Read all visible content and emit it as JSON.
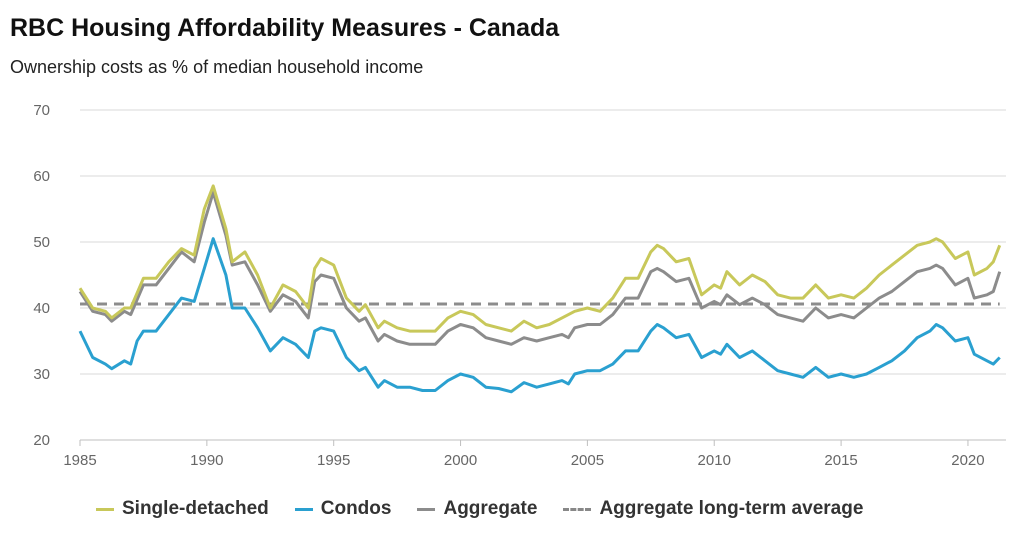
{
  "chart_data": {
    "type": "line",
    "title": "RBC Housing Affordability Measures - Canada",
    "subtitle": "Ownership costs as % of median household income",
    "xlabel": "",
    "ylabel": "",
    "xlim": [
      1985,
      2021.5
    ],
    "ylim": [
      20,
      70
    ],
    "x_ticks": [
      "1985",
      "1990",
      "1995",
      "2000",
      "2005",
      "2010",
      "2015",
      "2020"
    ],
    "y_ticks": [
      "20",
      "30",
      "40",
      "50",
      "60",
      "70"
    ],
    "grid": "horizontal",
    "legend_position": "bottom",
    "series": [
      {
        "name": "Single-detached",
        "color": "#c8c85a",
        "points": [
          [
            1985,
            43
          ],
          [
            1985.5,
            40
          ],
          [
            1986,
            39.5
          ],
          [
            1986.25,
            38.5
          ],
          [
            1986.75,
            40
          ],
          [
            1987,
            40
          ],
          [
            1987.5,
            44.5
          ],
          [
            1988,
            44.5
          ],
          [
            1988.5,
            47
          ],
          [
            1989,
            49
          ],
          [
            1989.5,
            48
          ],
          [
            1989.9,
            55
          ],
          [
            1990.25,
            58.5
          ],
          [
            1990.75,
            52
          ],
          [
            1991,
            47
          ],
          [
            1991.5,
            48.5
          ],
          [
            1992,
            45
          ],
          [
            1992.5,
            40
          ],
          [
            1993,
            43.5
          ],
          [
            1993.5,
            42.5
          ],
          [
            1994,
            40
          ],
          [
            1994.25,
            46
          ],
          [
            1994.5,
            47.5
          ],
          [
            1995,
            46.5
          ],
          [
            1995.5,
            41.5
          ],
          [
            1996,
            39.5
          ],
          [
            1996.25,
            40.5
          ],
          [
            1996.75,
            37
          ],
          [
            1997,
            38
          ],
          [
            1997.5,
            37
          ],
          [
            1998,
            36.5
          ],
          [
            1998.5,
            36.5
          ],
          [
            1999,
            36.5
          ],
          [
            1999.5,
            38.5
          ],
          [
            2000,
            39.5
          ],
          [
            2000.5,
            39
          ],
          [
            2001,
            37.5
          ],
          [
            2001.5,
            37
          ],
          [
            2002,
            36.5
          ],
          [
            2002.5,
            38
          ],
          [
            2003,
            37
          ],
          [
            2003.5,
            37.5
          ],
          [
            2004,
            38.5
          ],
          [
            2004.5,
            39.5
          ],
          [
            2005,
            40
          ],
          [
            2005.5,
            39.5
          ],
          [
            2006,
            41.5
          ],
          [
            2006.5,
            44.5
          ],
          [
            2007,
            44.5
          ],
          [
            2007.5,
            48.5
          ],
          [
            2007.75,
            49.5
          ],
          [
            2008,
            49
          ],
          [
            2008.5,
            47
          ],
          [
            2009,
            47.5
          ],
          [
            2009.5,
            42
          ],
          [
            2010,
            43.5
          ],
          [
            2010.25,
            43
          ],
          [
            2010.5,
            45.5
          ],
          [
            2011,
            43.5
          ],
          [
            2011.5,
            45
          ],
          [
            2012,
            44
          ],
          [
            2012.5,
            42
          ],
          [
            2013,
            41.5
          ],
          [
            2013.5,
            41.5
          ],
          [
            2014,
            43.5
          ],
          [
            2014.5,
            41.5
          ],
          [
            2015,
            42
          ],
          [
            2015.5,
            41.5
          ],
          [
            2016,
            43
          ],
          [
            2016.5,
            45
          ],
          [
            2017,
            46.5
          ],
          [
            2017.5,
            48
          ],
          [
            2018,
            49.5
          ],
          [
            2018.5,
            50
          ],
          [
            2018.75,
            50.5
          ],
          [
            2019,
            50
          ],
          [
            2019.5,
            47.5
          ],
          [
            2020,
            48.5
          ],
          [
            2020.25,
            45
          ],
          [
            2020.75,
            46
          ],
          [
            2021,
            47
          ],
          [
            2021.25,
            49.5
          ]
        ]
      },
      {
        "name": "Condos",
        "color": "#2aa0d0",
        "points": [
          [
            1985,
            36.5
          ],
          [
            1985.5,
            32.5
          ],
          [
            1986,
            31.5
          ],
          [
            1986.25,
            30.8
          ],
          [
            1986.75,
            32
          ],
          [
            1987,
            31.5
          ],
          [
            1987.25,
            35
          ],
          [
            1987.5,
            36.5
          ],
          [
            1988,
            36.5
          ],
          [
            1988.5,
            39
          ],
          [
            1989,
            41.5
          ],
          [
            1989.5,
            41
          ],
          [
            1989.9,
            46
          ],
          [
            1990.25,
            50.5
          ],
          [
            1990.75,
            45
          ],
          [
            1991,
            40
          ],
          [
            1991.5,
            40
          ],
          [
            1992,
            37
          ],
          [
            1992.5,
            33.5
          ],
          [
            1993,
            35.5
          ],
          [
            1993.5,
            34.5
          ],
          [
            1994,
            32.5
          ],
          [
            1994.25,
            36.5
          ],
          [
            1994.5,
            37
          ],
          [
            1995,
            36.5
          ],
          [
            1995.5,
            32.5
          ],
          [
            1996,
            30.5
          ],
          [
            1996.25,
            31
          ],
          [
            1996.75,
            28
          ],
          [
            1997,
            29
          ],
          [
            1997.5,
            28
          ],
          [
            1998,
            28
          ],
          [
            1998.5,
            27.5
          ],
          [
            1999,
            27.5
          ],
          [
            1999.5,
            29
          ],
          [
            2000,
            30
          ],
          [
            2000.5,
            29.5
          ],
          [
            2001,
            28
          ],
          [
            2001.5,
            27.8
          ],
          [
            2002,
            27.3
          ],
          [
            2002.5,
            28.7
          ],
          [
            2003,
            28
          ],
          [
            2003.5,
            28.5
          ],
          [
            2004,
            29
          ],
          [
            2004.25,
            28.5
          ],
          [
            2004.5,
            30
          ],
          [
            2005,
            30.5
          ],
          [
            2005.5,
            30.5
          ],
          [
            2006,
            31.5
          ],
          [
            2006.5,
            33.5
          ],
          [
            2007,
            33.5
          ],
          [
            2007.5,
            36.5
          ],
          [
            2007.75,
            37.5
          ],
          [
            2008,
            37
          ],
          [
            2008.5,
            35.5
          ],
          [
            2009,
            36
          ],
          [
            2009.5,
            32.5
          ],
          [
            2010,
            33.5
          ],
          [
            2010.25,
            33
          ],
          [
            2010.5,
            34.5
          ],
          [
            2011,
            32.5
          ],
          [
            2011.5,
            33.5
          ],
          [
            2012,
            32
          ],
          [
            2012.5,
            30.5
          ],
          [
            2013,
            30
          ],
          [
            2013.5,
            29.5
          ],
          [
            2014,
            31
          ],
          [
            2014.5,
            29.5
          ],
          [
            2015,
            30
          ],
          [
            2015.5,
            29.5
          ],
          [
            2016,
            30
          ],
          [
            2016.5,
            31
          ],
          [
            2017,
            32
          ],
          [
            2017.5,
            33.5
          ],
          [
            2018,
            35.5
          ],
          [
            2018.5,
            36.5
          ],
          [
            2018.75,
            37.5
          ],
          [
            2019,
            37
          ],
          [
            2019.5,
            35
          ],
          [
            2020,
            35.5
          ],
          [
            2020.25,
            33
          ],
          [
            2020.75,
            32
          ],
          [
            2021,
            31.5
          ],
          [
            2021.25,
            32.5
          ]
        ]
      },
      {
        "name": "Aggregate",
        "color": "#8c8c8c",
        "points": [
          [
            1985,
            42.5
          ],
          [
            1985.5,
            39.5
          ],
          [
            1986,
            39
          ],
          [
            1986.25,
            38
          ],
          [
            1986.75,
            39.5
          ],
          [
            1987,
            39
          ],
          [
            1987.5,
            43.5
          ],
          [
            1988,
            43.5
          ],
          [
            1988.5,
            46
          ],
          [
            1989,
            48.5
          ],
          [
            1989.5,
            47
          ],
          [
            1989.9,
            53
          ],
          [
            1990.25,
            57.5
          ],
          [
            1990.75,
            51
          ],
          [
            1991,
            46.5
          ],
          [
            1991.5,
            47
          ],
          [
            1992,
            43.5
          ],
          [
            1992.5,
            39.5
          ],
          [
            1993,
            42
          ],
          [
            1993.5,
            41
          ],
          [
            1994,
            38.5
          ],
          [
            1994.25,
            44
          ],
          [
            1994.5,
            45
          ],
          [
            1995,
            44.5
          ],
          [
            1995.5,
            40
          ],
          [
            1996,
            38
          ],
          [
            1996.25,
            38.5
          ],
          [
            1996.75,
            35
          ],
          [
            1997,
            36
          ],
          [
            1997.5,
            35
          ],
          [
            1998,
            34.5
          ],
          [
            1998.5,
            34.5
          ],
          [
            1999,
            34.5
          ],
          [
            1999.5,
            36.5
          ],
          [
            2000,
            37.5
          ],
          [
            2000.5,
            37
          ],
          [
            2001,
            35.5
          ],
          [
            2001.5,
            35
          ],
          [
            2002,
            34.5
          ],
          [
            2002.5,
            35.5
          ],
          [
            2003,
            35
          ],
          [
            2003.5,
            35.5
          ],
          [
            2004,
            36
          ],
          [
            2004.25,
            35.5
          ],
          [
            2004.5,
            37
          ],
          [
            2005,
            37.5
          ],
          [
            2005.5,
            37.5
          ],
          [
            2006,
            39
          ],
          [
            2006.5,
            41.5
          ],
          [
            2007,
            41.5
          ],
          [
            2007.5,
            45.5
          ],
          [
            2007.75,
            46
          ],
          [
            2008,
            45.5
          ],
          [
            2008.5,
            44
          ],
          [
            2009,
            44.5
          ],
          [
            2009.5,
            40
          ],
          [
            2010,
            41
          ],
          [
            2010.25,
            40.5
          ],
          [
            2010.5,
            42
          ],
          [
            2011,
            40.5
          ],
          [
            2011.5,
            41.5
          ],
          [
            2012,
            40.5
          ],
          [
            2012.5,
            39
          ],
          [
            2013,
            38.5
          ],
          [
            2013.5,
            38
          ],
          [
            2014,
            40
          ],
          [
            2014.5,
            38.5
          ],
          [
            2015,
            39
          ],
          [
            2015.5,
            38.5
          ],
          [
            2016,
            40
          ],
          [
            2016.5,
            41.5
          ],
          [
            2017,
            42.5
          ],
          [
            2017.5,
            44
          ],
          [
            2018,
            45.5
          ],
          [
            2018.5,
            46
          ],
          [
            2018.75,
            46.5
          ],
          [
            2019,
            46
          ],
          [
            2019.5,
            43.5
          ],
          [
            2020,
            44.5
          ],
          [
            2020.25,
            41.5
          ],
          [
            2020.75,
            42
          ],
          [
            2021,
            42.5
          ],
          [
            2021.25,
            45.5
          ]
        ]
      },
      {
        "name": "Aggregate long-term average",
        "color": "#8c8c8c",
        "dashed": true,
        "points": [
          [
            1985,
            40.6
          ],
          [
            2021.25,
            40.6
          ]
        ]
      }
    ]
  }
}
